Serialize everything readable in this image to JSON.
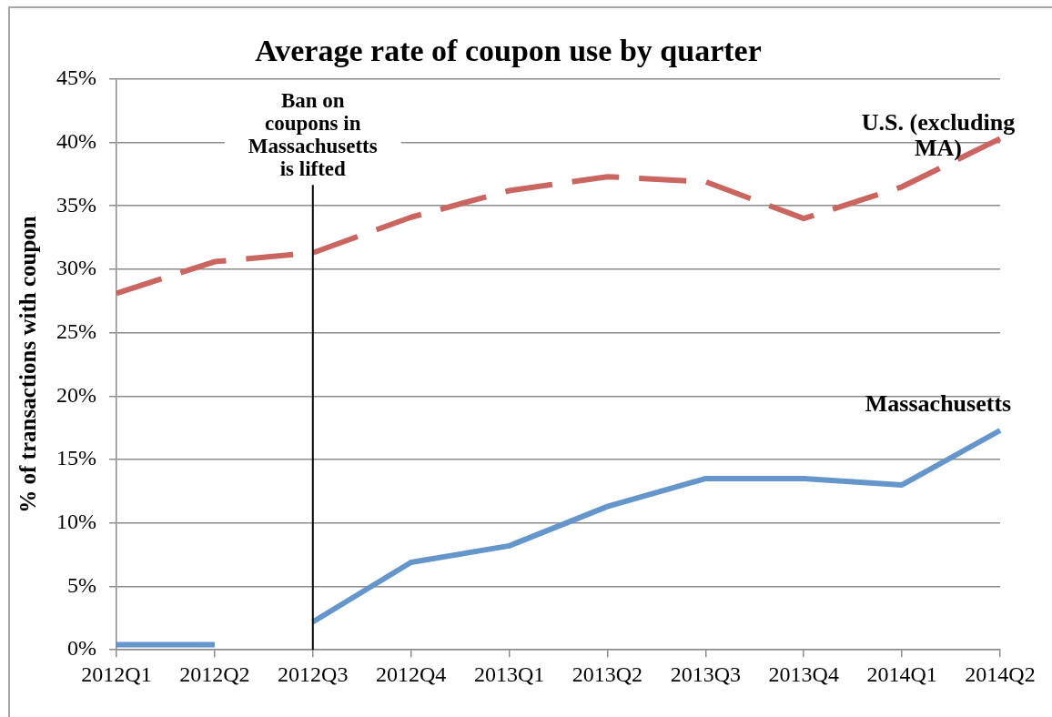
{
  "chart_data": {
    "type": "line",
    "title": "Average rate of coupon use by quarter",
    "ylabel": "% of transactions with coupon",
    "categories": [
      "2012Q1",
      "2012Q2",
      "2012Q3",
      "2012Q4",
      "2013Q1",
      "2013Q2",
      "2013Q3",
      "2013Q4",
      "2014Q1",
      "2014Q2"
    ],
    "series": [
      {
        "name": "U.S. (excluding MA)",
        "color": "#cb6560",
        "line_style": "dashed",
        "values": [
          28.1,
          30.6,
          31.3,
          34.1,
          36.2,
          37.3,
          36.9,
          34.0,
          36.5,
          40.3
        ]
      },
      {
        "color": "#6495cb",
        "values": [
          0.4,
          0.4,
          null,
          null,
          null,
          null,
          null,
          null,
          null,
          null
        ]
      },
      {
        "name": "Massachusetts",
        "color": "#6495cb",
        "values": [
          null,
          null,
          2.2,
          6.9,
          8.2,
          11.3,
          13.5,
          13.5,
          13.0,
          17.3
        ]
      }
    ],
    "ylim": [
      0,
      45
    ],
    "yticks": [
      {
        "value": 0,
        "label": "0%"
      },
      {
        "value": 5,
        "label": "5%"
      },
      {
        "value": 10,
        "label": "10%"
      },
      {
        "value": 15,
        "label": "15%"
      },
      {
        "value": 20,
        "label": "20%"
      },
      {
        "value": 25,
        "label": "25%"
      },
      {
        "value": 30,
        "label": "30%"
      },
      {
        "value": 35,
        "label": "35%"
      },
      {
        "value": 40,
        "label": "40%"
      },
      {
        "value": 45,
        "label": "45%"
      }
    ],
    "grid": "y",
    "legend": false,
    "marker": "none",
    "line_style": "solid",
    "ref_lines": [
      {
        "axis": "x",
        "value": "2012Q3",
        "label": "Ban on coupons in Massachusetts is lifted",
        "color": "#000000"
      }
    ]
  }
}
